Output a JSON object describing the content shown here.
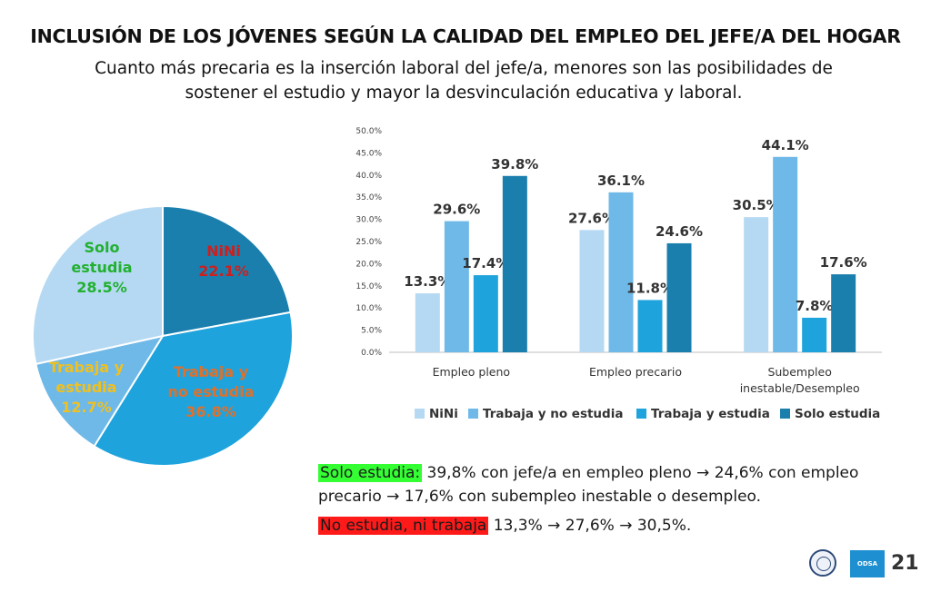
{
  "slide": {
    "title": "INCLUSIÓN DE LOS JÓVENES SEGÚN LA CALIDAD DEL EMPLEO DEL JEFE/A DEL HOGAR",
    "subtitle_line1": "Cuanto más precaria es la inserción laboral del jefe/a, menores son las posibilidades de",
    "subtitle_line2": "sostener el estudio y mayor la desvinculación educativa y laboral.",
    "page_number": "21",
    "logo_text": "ODSA"
  },
  "notes": {
    "note1_highlight": "Solo estudia:",
    "note1_text": " 39,8% con jefe/a en empleo pleno → 24,6% con empleo precario → 17,6% con subempleo inestable o desempleo.",
    "note2_highlight": "No estudia, ni trabaja",
    "note2_text": " 13,3% → 27,6% → 30,5%."
  },
  "chart_data": [
    {
      "type": "pie",
      "slices": [
        {
          "name_lines": [
            "NiNi"
          ],
          "value": 22.1,
          "label": "22.1%",
          "color": "#1a7fad",
          "label_color": "#cc2020"
        },
        {
          "name_lines": [
            "Trabaja y",
            "no estudia"
          ],
          "value": 36.8,
          "label": "36.8%",
          "color": "#1fa3dc",
          "label_color": "#e0702a"
        },
        {
          "name_lines": [
            "Trabaja y",
            "estudia"
          ],
          "value": 12.7,
          "label": "12.7%",
          "color": "#6fb9e8",
          "label_color": "#f0c020"
        },
        {
          "name_lines": [
            "Solo",
            "estudia"
          ],
          "value": 28.5,
          "label": "28.5%",
          "color": "#b5d9f2",
          "label_color": "#22b030"
        }
      ]
    },
    {
      "type": "bar",
      "categories": [
        [
          "Empleo pleno"
        ],
        [
          "Empleo precario"
        ],
        [
          "Subempleo",
          "inestable/Desempleo"
        ]
      ],
      "series": [
        {
          "name": "NiNi",
          "values": [
            13.3,
            27.6,
            30.5
          ],
          "labels": [
            "13.3%",
            "27.6%",
            "30.5%"
          ],
          "color": "#b5d9f2"
        },
        {
          "name": "Trabaja y no estudia",
          "values": [
            29.6,
            36.1,
            44.1
          ],
          "labels": [
            "29.6%",
            "36.1%",
            "44.1%"
          ],
          "color": "#6fb9e8"
        },
        {
          "name": "Trabaja y estudia",
          "values": [
            17.4,
            11.8,
            7.8
          ],
          "labels": [
            "17.4%",
            "11.8%",
            "7.8%"
          ],
          "color": "#1fa3dc"
        },
        {
          "name": "Solo estudia",
          "values": [
            39.8,
            24.6,
            17.6
          ],
          "labels": [
            "39.8%",
            "24.6%",
            "17.6%"
          ],
          "color": "#1a7fad"
        }
      ],
      "ylim": [
        0,
        50
      ],
      "yticks": [
        0,
        5,
        10,
        15,
        20,
        25,
        30,
        35,
        40,
        45,
        50
      ],
      "ytick_labels": [
        "0.0%",
        "5.0%",
        "10.0%",
        "15.0%",
        "20.0%",
        "25.0%",
        "30.0%",
        "35.0%",
        "40.0%",
        "45.0%",
        "50.0%"
      ],
      "grid": false,
      "legend": "bottom"
    }
  ]
}
